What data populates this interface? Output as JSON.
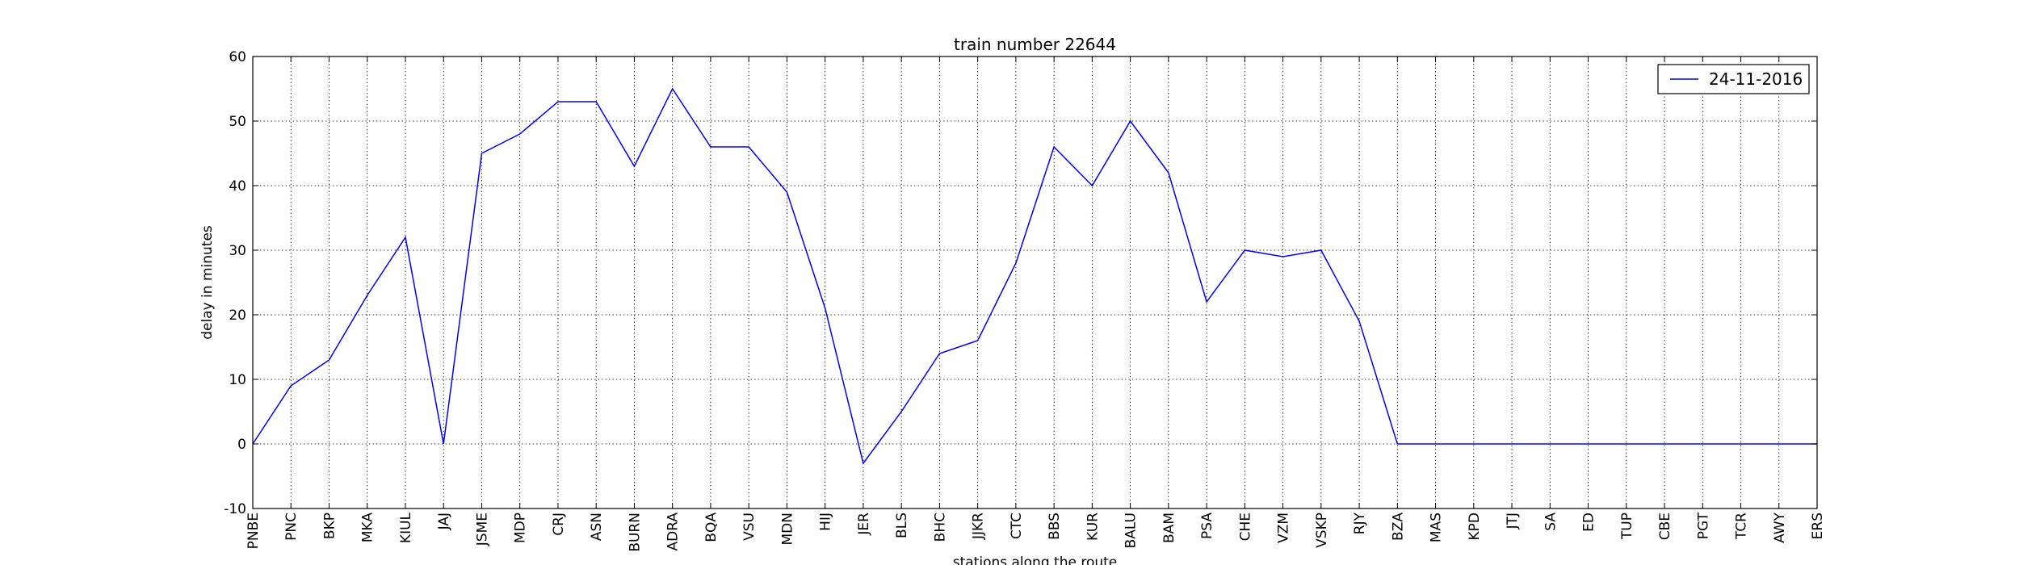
{
  "chart_data": {
    "type": "line",
    "title": "train number 22644",
    "xlabel": "stations along the route",
    "ylabel": "delay in minutes",
    "ylim": [
      -10,
      60
    ],
    "yticks": [
      -10,
      0,
      10,
      20,
      30,
      40,
      50,
      60
    ],
    "grid": true,
    "grid_style": "dotted",
    "legend_position": "top-right",
    "categories": [
      "PNBE",
      "PNC",
      "BKP",
      "MKA",
      "KIUL",
      "JAJ",
      "JSME",
      "MDP",
      "CRJ",
      "ASN",
      "BURN",
      "ADRA",
      "BQA",
      "VSU",
      "MDN",
      "HIJ",
      "JER",
      "BLS",
      "BHC",
      "JJKR",
      "CTC",
      "BBS",
      "KUR",
      "BALU",
      "BAM",
      "PSA",
      "CHE",
      "VZM",
      "VSKP",
      "RJY",
      "BZA",
      "MAS",
      "KPD",
      "JTJ",
      "SA",
      "ED",
      "TUP",
      "CBE",
      "PGT",
      "TCR",
      "AWY",
      "ERS"
    ],
    "series": [
      {
        "name": "24-11-2016",
        "color": "#0000ff",
        "values": [
          0,
          9,
          13,
          23,
          32,
          0,
          45,
          48,
          53,
          53,
          43,
          55,
          46,
          46,
          39,
          21,
          -3,
          5,
          14,
          16,
          28,
          46,
          40,
          50,
          42,
          22,
          30,
          29,
          30,
          19,
          0,
          0,
          0,
          0,
          0,
          0,
          0,
          0,
          0,
          0,
          0,
          0
        ]
      }
    ]
  }
}
